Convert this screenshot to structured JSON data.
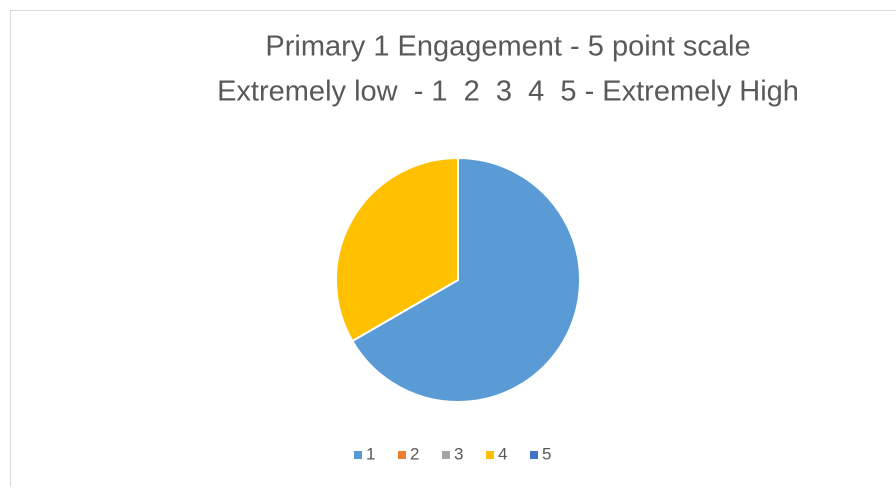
{
  "chart_data": {
    "type": "pie",
    "title": [
      "Primary 1 Engagement - 5 point scale",
      "Extremely low  - 1  2  3  4  5 - Extremely High"
    ],
    "categories": [
      "1",
      "2",
      "3",
      "4",
      "5"
    ],
    "values": [
      2,
      0,
      0,
      1,
      0
    ],
    "colors": [
      "#5b9bd5",
      "#ed7d31",
      "#a5a5a5",
      "#ffc000",
      "#4472c4"
    ],
    "legend": "bottom"
  }
}
